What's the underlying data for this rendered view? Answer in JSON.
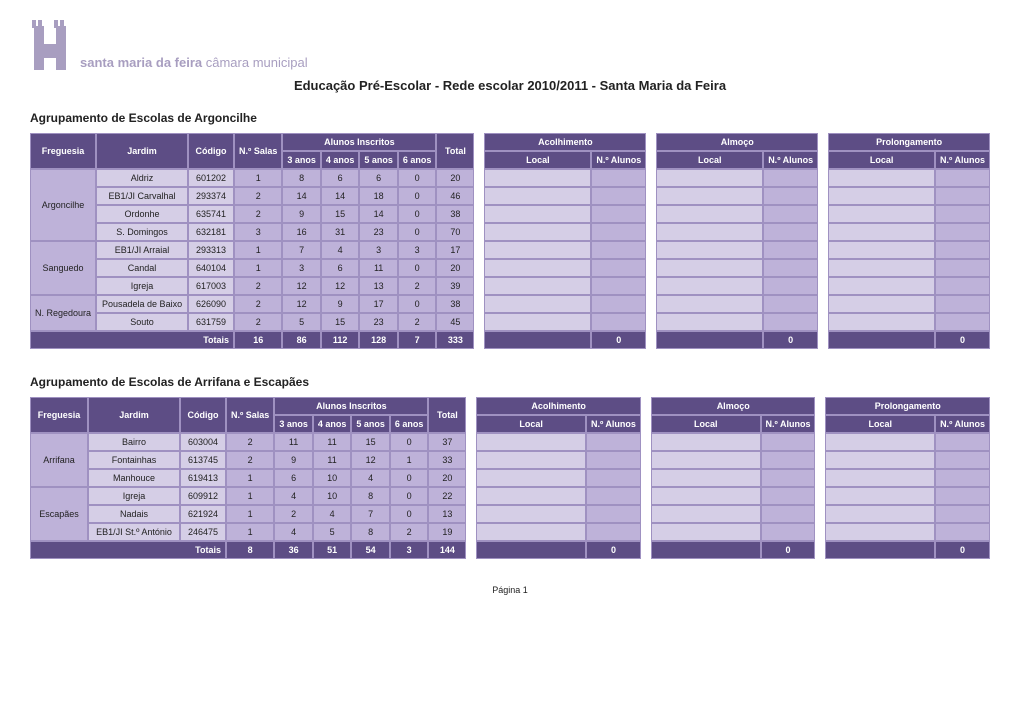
{
  "doc": {
    "org_name_bold": "santa maria da feira",
    "org_name_light": "câmara municipal",
    "title": "Educação Pré-Escolar - Rede escolar 2010/2011 - Santa Maria da Feira",
    "footer": "Página 1"
  },
  "labels": {
    "freguesia": "Freguesia",
    "jardim": "Jardim",
    "codigo": "Código",
    "n_salas": "N.º Salas",
    "alunos_inscritos": "Alunos Inscritos",
    "total": "Total",
    "anos": {
      "a3": "3 anos",
      "a4": "4 anos",
      "a5": "5 anos",
      "a6": "6 anos"
    },
    "local": "Local",
    "n_alunos": "N.º Alunos",
    "totais": "Totais"
  },
  "services": [
    "Acolhimento",
    "Almoço",
    "Prolongamento"
  ],
  "sections": [
    {
      "title": "Agrupamento de Escolas de Argoncilhe",
      "freguesias": [
        {
          "name": "Argoncilhe",
          "rows": [
            {
              "jardim": "Aldriz",
              "codigo": "601202",
              "salas": 1,
              "a3": 8,
              "a4": 6,
              "a5": 6,
              "a6": 0,
              "total": 20
            },
            {
              "jardim": "EB1/JI Carvalhal",
              "codigo": "293374",
              "salas": 2,
              "a3": 14,
              "a4": 14,
              "a5": 18,
              "a6": 0,
              "total": 46
            },
            {
              "jardim": "Ordonhe",
              "codigo": "635741",
              "salas": 2,
              "a3": 9,
              "a4": 15,
              "a5": 14,
              "a6": 0,
              "total": 38
            },
            {
              "jardim": "S. Domingos",
              "codigo": "632181",
              "salas": 3,
              "a3": 16,
              "a4": 31,
              "a5": 23,
              "a6": 0,
              "total": 70
            }
          ]
        },
        {
          "name": "Sanguedo",
          "rows": [
            {
              "jardim": "EB1/JI Arraial",
              "codigo": "293313",
              "salas": 1,
              "a3": 7,
              "a4": 4,
              "a5": 3,
              "a6": 3,
              "total": 17
            },
            {
              "jardim": "Candal",
              "codigo": "640104",
              "salas": 1,
              "a3": 3,
              "a4": 6,
              "a5": 11,
              "a6": 0,
              "total": 20
            },
            {
              "jardim": "Igreja",
              "codigo": "617003",
              "salas": 2,
              "a3": 12,
              "a4": 12,
              "a5": 13,
              "a6": 2,
              "total": 39
            }
          ]
        },
        {
          "name": "N. Regedoura",
          "rows": [
            {
              "jardim": "Pousadela de Baixo",
              "codigo": "626090",
              "salas": 2,
              "a3": 12,
              "a4": 9,
              "a5": 17,
              "a6": 0,
              "total": 38
            },
            {
              "jardim": "Souto",
              "codigo": "631759",
              "salas": 2,
              "a3": 5,
              "a4": 15,
              "a5": 23,
              "a6": 2,
              "total": 45
            }
          ]
        }
      ],
      "totals": {
        "salas": 16,
        "a3": 86,
        "a4": 112,
        "a5": 128,
        "a6": 7,
        "total": 333,
        "svc": [
          0,
          0,
          0
        ]
      }
    },
    {
      "title": "Agrupamento de Escolas de Arrifana e Escapães",
      "freguesias": [
        {
          "name": "Arrifana",
          "rows": [
            {
              "jardim": "Bairro",
              "codigo": "603004",
              "salas": 2,
              "a3": 11,
              "a4": 11,
              "a5": 15,
              "a6": 0,
              "total": 37
            },
            {
              "jardim": "Fontainhas",
              "codigo": "613745",
              "salas": 2,
              "a3": 9,
              "a4": 11,
              "a5": 12,
              "a6": 1,
              "total": 33
            },
            {
              "jardim": "Manhouce",
              "codigo": "619413",
              "salas": 1,
              "a3": 6,
              "a4": 10,
              "a5": 4,
              "a6": 0,
              "total": 20
            }
          ]
        },
        {
          "name": "Escapães",
          "rows": [
            {
              "jardim": "Igreja",
              "codigo": "609912",
              "salas": 1,
              "a3": 4,
              "a4": 10,
              "a5": 8,
              "a6": 0,
              "total": 22
            },
            {
              "jardim": "Nadais",
              "codigo": "621924",
              "salas": 1,
              "a3": 2,
              "a4": 4,
              "a5": 7,
              "a6": 0,
              "total": 13
            },
            {
              "jardim": "EB1/JI St.º António",
              "codigo": "246475",
              "salas": 1,
              "a3": 4,
              "a4": 5,
              "a5": 8,
              "a6": 2,
              "total": 19
            }
          ]
        }
      ],
      "totals": {
        "salas": 8,
        "a3": 36,
        "a4": 51,
        "a5": 54,
        "a6": 3,
        "total": 144,
        "svc": [
          0,
          0,
          0
        ]
      }
    }
  ],
  "style": {
    "header_bg": "#5d4d85",
    "header_text": "#ffffff",
    "cell_light": "#d5cee6",
    "cell_mid": "#beb2d9",
    "border": "#9f91c1",
    "logo_color": "#a89ec0",
    "font_family": "Arial",
    "title_fontsize_pt": 10,
    "body_fontsize_pt": 7
  }
}
